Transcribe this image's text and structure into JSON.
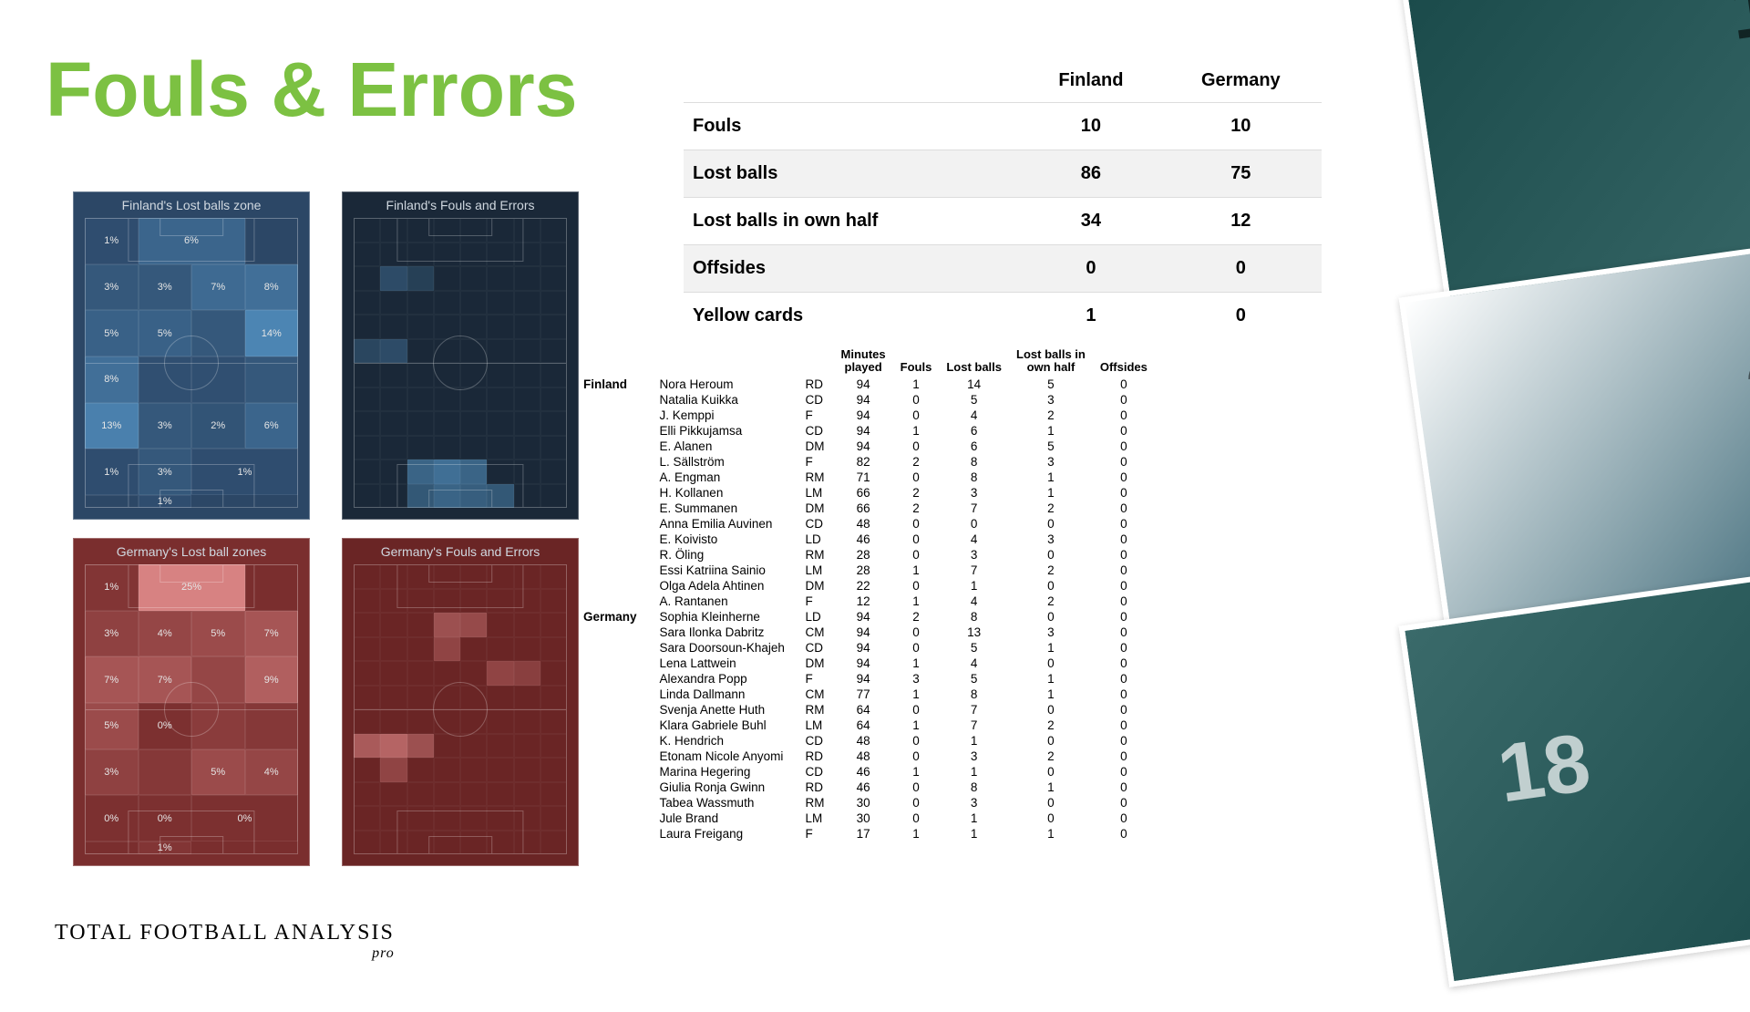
{
  "title": "Fouls & Errors",
  "title_color": "#7cc142",
  "watermark": {
    "main": "TOTAL FOOTBALL ANALYSIS",
    "sub": "pro"
  },
  "summary": {
    "col1": "Finland",
    "col2": "Germany",
    "rows": [
      {
        "label": "Fouls",
        "v1": "10",
        "v2": "10",
        "alt": false
      },
      {
        "label": "Lost balls",
        "v1": "86",
        "v2": "75",
        "alt": true
      },
      {
        "label": "Lost balls in own half",
        "v1": "34",
        "v2": "12",
        "alt": false
      },
      {
        "label": "Offsides",
        "v1": "0",
        "v2": "0",
        "alt": true
      },
      {
        "label": "Yellow cards",
        "v1": "1",
        "v2": "0",
        "alt": false
      }
    ]
  },
  "heatmaps": {
    "fin_lost": {
      "title": "Finland's Lost balls zone",
      "bg": "#2c4766",
      "cells": [
        {
          "v": 1,
          "o": 0.08
        },
        {
          "v": 6,
          "o": 0.35,
          "span": 2
        },
        {
          "v": null
        },
        {
          "v": 3,
          "o": 0.2
        },
        {
          "v": 3,
          "o": 0.2
        },
        {
          "v": 7,
          "o": 0.4
        },
        {
          "v": 8,
          "o": 0.45
        },
        {
          "v": 5,
          "o": 0.3
        },
        {
          "v": 5,
          "o": 0.3
        },
        {
          "v": null,
          "o": 0.2
        },
        {
          "v": 14,
          "o": 0.7
        },
        {
          "v": 8,
          "o": 0.45
        },
        {
          "v": null,
          "o": 0.1
        },
        {
          "v": null,
          "o": 0.1
        },
        {
          "v": null,
          "o": 0.2
        },
        {
          "v": 13,
          "o": 0.65
        },
        {
          "v": 3,
          "o": 0.2
        },
        {
          "v": 2,
          "o": 0.15
        },
        {
          "v": 6,
          "o": 0.35
        },
        {
          "v": 1,
          "o": 0.08
        },
        {
          "v": 3,
          "o": 0.2
        },
        {
          "v": 1,
          "o": 0.08,
          "span": 2
        },
        {
          "v": null
        },
        {
          "v": 1,
          "o": 0.08
        }
      ],
      "highlight": "#5a9fd4"
    },
    "fin_fouls": {
      "title": "Finland's\nFouls and Errors",
      "bg": "#1a2838",
      "fine": true,
      "hotspots": [
        {
          "r": 2,
          "c": 1,
          "o": 0.3
        },
        {
          "r": 2,
          "c": 2,
          "o": 0.2
        },
        {
          "r": 5,
          "c": 0,
          "o": 0.25
        },
        {
          "r": 5,
          "c": 1,
          "o": 0.3
        },
        {
          "r": 10,
          "c": 2,
          "o": 0.5
        },
        {
          "r": 10,
          "c": 3,
          "o": 0.6
        },
        {
          "r": 10,
          "c": 4,
          "o": 0.5
        },
        {
          "r": 11,
          "c": 2,
          "o": 0.4
        },
        {
          "r": 11,
          "c": 3,
          "o": 0.5
        },
        {
          "r": 11,
          "c": 4,
          "o": 0.45
        },
        {
          "r": 11,
          "c": 5,
          "o": 0.4
        }
      ],
      "highlight": "#5a9fd4"
    },
    "ger_lost": {
      "title": "Germany's Lost ball zones",
      "bg": "#7a2e2e",
      "cells": [
        {
          "v": 1,
          "o": 0.08
        },
        {
          "v": 25,
          "o": 0.85,
          "span": 2
        },
        {
          "v": null
        },
        {
          "v": 3,
          "o": 0.2
        },
        {
          "v": 4,
          "o": 0.25
        },
        {
          "v": 5,
          "o": 0.3
        },
        {
          "v": 7,
          "o": 0.4
        },
        {
          "v": 7,
          "o": 0.4
        },
        {
          "v": 7,
          "o": 0.4
        },
        {
          "v": null,
          "o": 0.25
        },
        {
          "v": 9,
          "o": 0.5
        },
        {
          "v": 5,
          "o": 0.3
        },
        {
          "v": 0,
          "o": 0.02
        },
        {
          "v": null,
          "o": 0.15
        },
        {
          "v": null,
          "o": 0.1
        },
        {
          "v": 3,
          "o": 0.2
        },
        {
          "v": null,
          "o": 0.1
        },
        {
          "v": 5,
          "o": 0.3
        },
        {
          "v": 4,
          "o": 0.25
        },
        {
          "v": 0,
          "o": 0.02
        },
        {
          "v": 0,
          "o": 0.02
        },
        {
          "v": 0,
          "o": 0.02,
          "span": 2
        },
        {
          "v": null
        },
        {
          "v": 1,
          "o": 0.08
        }
      ],
      "highlight": "#e89090"
    },
    "ger_fouls": {
      "title": "Germany's\nFouls and Errors",
      "bg": "#6a2525",
      "fine": true,
      "hotspots": [
        {
          "r": 2,
          "c": 3,
          "o": 0.4
        },
        {
          "r": 2,
          "c": 4,
          "o": 0.35
        },
        {
          "r": 3,
          "c": 3,
          "o": 0.3
        },
        {
          "r": 4,
          "c": 5,
          "o": 0.3
        },
        {
          "r": 4,
          "c": 6,
          "o": 0.25
        },
        {
          "r": 7,
          "c": 0,
          "o": 0.5
        },
        {
          "r": 7,
          "c": 1,
          "o": 0.6
        },
        {
          "r": 7,
          "c": 2,
          "o": 0.4
        },
        {
          "r": 8,
          "c": 1,
          "o": 0.3
        }
      ],
      "highlight": "#e89090"
    }
  },
  "player_table": {
    "headers": [
      "",
      "",
      "",
      "Minutes\nplayed",
      "Fouls",
      "Lost balls",
      "Lost balls in\nown half",
      "Offsides"
    ],
    "teams": [
      {
        "name": "Finland",
        "players": [
          {
            "n": "Nora Heroum",
            "p": "RD",
            "m": 94,
            "f": 1,
            "lb": 14,
            "lh": 5,
            "o": 0
          },
          {
            "n": "Natalia Kuikka",
            "p": "CD",
            "m": 94,
            "f": 0,
            "lb": 5,
            "lh": 3,
            "o": 0
          },
          {
            "n": "J. Kemppi",
            "p": "F",
            "m": 94,
            "f": 0,
            "lb": 4,
            "lh": 2,
            "o": 0
          },
          {
            "n": "Elli Pikkujamsa",
            "p": "CD",
            "m": 94,
            "f": 1,
            "lb": 6,
            "lh": 1,
            "o": 0
          },
          {
            "n": "E. Alanen",
            "p": "DM",
            "m": 94,
            "f": 0,
            "lb": 6,
            "lh": 5,
            "o": 0
          },
          {
            "n": "L. Sällström",
            "p": "F",
            "m": 82,
            "f": 2,
            "lb": 8,
            "lh": 3,
            "o": 0
          },
          {
            "n": "A. Engman",
            "p": "RM",
            "m": 71,
            "f": 0,
            "lb": 8,
            "lh": 1,
            "o": 0
          },
          {
            "n": "H. Kollanen",
            "p": "LM",
            "m": 66,
            "f": 2,
            "lb": 3,
            "lh": 1,
            "o": 0
          },
          {
            "n": "E. Summanen",
            "p": "DM",
            "m": 66,
            "f": 2,
            "lb": 7,
            "lh": 2,
            "o": 0
          },
          {
            "n": "Anna Emilia Auvinen",
            "p": "CD",
            "m": 48,
            "f": 0,
            "lb": 0,
            "lh": 0,
            "o": 0
          },
          {
            "n": "E. Koivisto",
            "p": "LD",
            "m": 46,
            "f": 0,
            "lb": 4,
            "lh": 3,
            "o": 0
          },
          {
            "n": "R. Öling",
            "p": "RM",
            "m": 28,
            "f": 0,
            "lb": 3,
            "lh": 0,
            "o": 0
          },
          {
            "n": "Essi Katriina Sainio",
            "p": "LM",
            "m": 28,
            "f": 1,
            "lb": 7,
            "lh": 2,
            "o": 0
          },
          {
            "n": "Olga Adela Ahtinen",
            "p": "DM",
            "m": 22,
            "f": 0,
            "lb": 1,
            "lh": 0,
            "o": 0
          },
          {
            "n": "A. Rantanen",
            "p": "F",
            "m": 12,
            "f": 1,
            "lb": 4,
            "lh": 2,
            "o": 0
          }
        ]
      },
      {
        "name": "Germany",
        "players": [
          {
            "n": "Sophia Kleinherne",
            "p": "LD",
            "m": 94,
            "f": 2,
            "lb": 8,
            "lh": 0,
            "o": 0
          },
          {
            "n": "Sara Ilonka Dabritz",
            "p": "CM",
            "m": 94,
            "f": 0,
            "lb": 13,
            "lh": 3,
            "o": 0
          },
          {
            "n": "Sara Doorsoun-Khajeh",
            "p": "CD",
            "m": 94,
            "f": 0,
            "lb": 5,
            "lh": 1,
            "o": 0
          },
          {
            "n": "Lena Lattwein",
            "p": "DM",
            "m": 94,
            "f": 1,
            "lb": 4,
            "lh": 0,
            "o": 0
          },
          {
            "n": "Alexandra Popp",
            "p": "F",
            "m": 94,
            "f": 3,
            "lb": 5,
            "lh": 1,
            "o": 0
          },
          {
            "n": "Linda Dallmann",
            "p": "CM",
            "m": 77,
            "f": 1,
            "lb": 8,
            "lh": 1,
            "o": 0
          },
          {
            "n": "Svenja Anette Huth",
            "p": "RM",
            "m": 64,
            "f": 0,
            "lb": 7,
            "lh": 0,
            "o": 0
          },
          {
            "n": "Klara Gabriele Buhl",
            "p": "LM",
            "m": 64,
            "f": 1,
            "lb": 7,
            "lh": 2,
            "o": 0
          },
          {
            "n": "K. Hendrich",
            "p": "CD",
            "m": 48,
            "f": 0,
            "lb": 1,
            "lh": 0,
            "o": 0
          },
          {
            "n": "Etonam Nicole Anyomi",
            "p": "RD",
            "m": 48,
            "f": 0,
            "lb": 3,
            "lh": 2,
            "o": 0
          },
          {
            "n": "Marina Hegering",
            "p": "CD",
            "m": 46,
            "f": 1,
            "lb": 1,
            "lh": 0,
            "o": 0
          },
          {
            "n": "Giulia Ronja Gwinn",
            "p": "RD",
            "m": 46,
            "f": 0,
            "lb": 8,
            "lh": 1,
            "o": 0
          },
          {
            "n": "Tabea Wassmuth",
            "p": "RM",
            "m": 30,
            "f": 0,
            "lb": 3,
            "lh": 0,
            "o": 0
          },
          {
            "n": "Jule Brand",
            "p": "LM",
            "m": 30,
            "f": 0,
            "lb": 1,
            "lh": 0,
            "o": 0
          },
          {
            "n": "Laura Freigang",
            "p": "F",
            "m": 17,
            "f": 1,
            "lb": 1,
            "lh": 1,
            "o": 0
          }
        ]
      }
    ]
  }
}
